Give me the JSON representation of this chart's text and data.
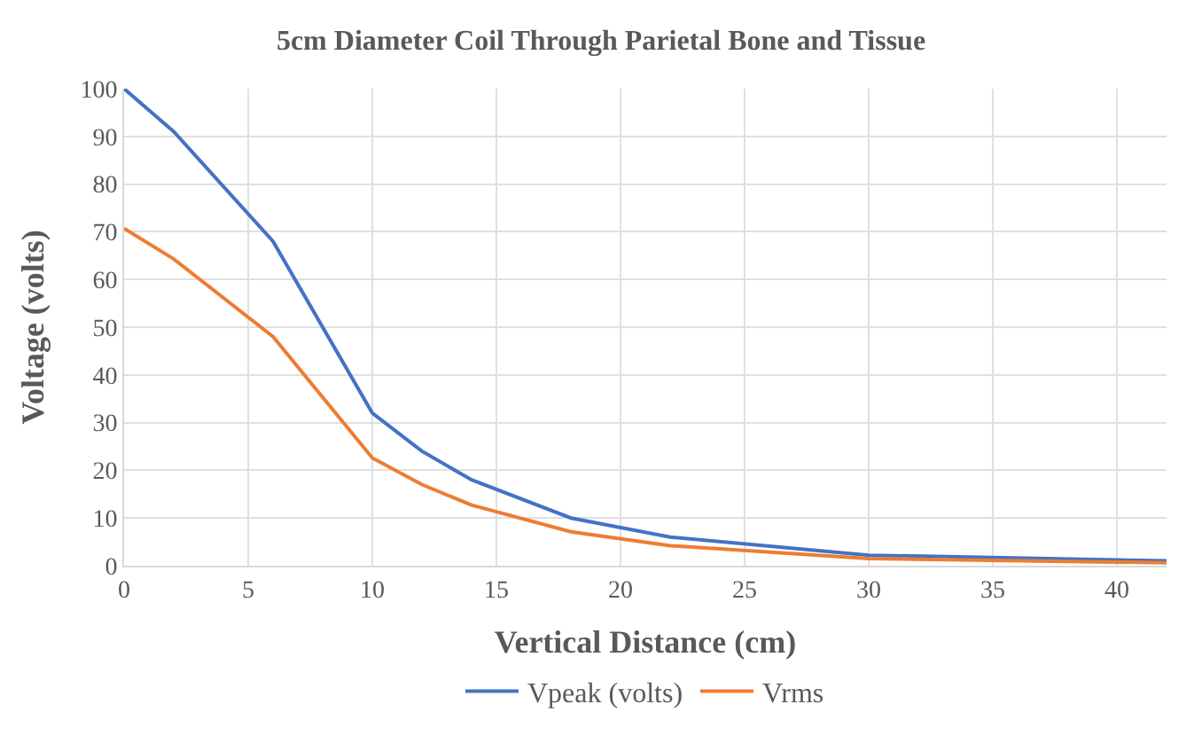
{
  "chart_data": {
    "type": "line",
    "title": "5cm Diameter Coil Through Parietal Bone and Tissue",
    "xlabel": "Vertical Distance (cm)",
    "ylabel": "Voltage (volts)",
    "x": [
      0,
      2,
      6,
      10,
      12,
      14,
      18,
      22,
      30,
      42
    ],
    "series": [
      {
        "name": "Vpeak (volts)",
        "color": "#4472c4",
        "values": [
          100,
          91,
          68,
          32,
          24,
          18,
          10,
          6,
          2.2,
          1
        ]
      },
      {
        "name": "Vrms",
        "color": "#ed7d31",
        "values": [
          70.7,
          64.3,
          48,
          22.6,
          17,
          12.7,
          7.1,
          4.2,
          1.5,
          0.6
        ]
      }
    ],
    "xlim": [
      0,
      42
    ],
    "xticks": [
      0,
      5,
      10,
      15,
      20,
      25,
      30,
      35,
      40
    ],
    "ylim": [
      0,
      100
    ],
    "yticks": [
      0,
      10,
      20,
      30,
      40,
      50,
      60,
      70,
      80,
      90,
      100
    ],
    "grid": true,
    "legend": "bottom",
    "marker": "none",
    "line_style": "solid"
  }
}
